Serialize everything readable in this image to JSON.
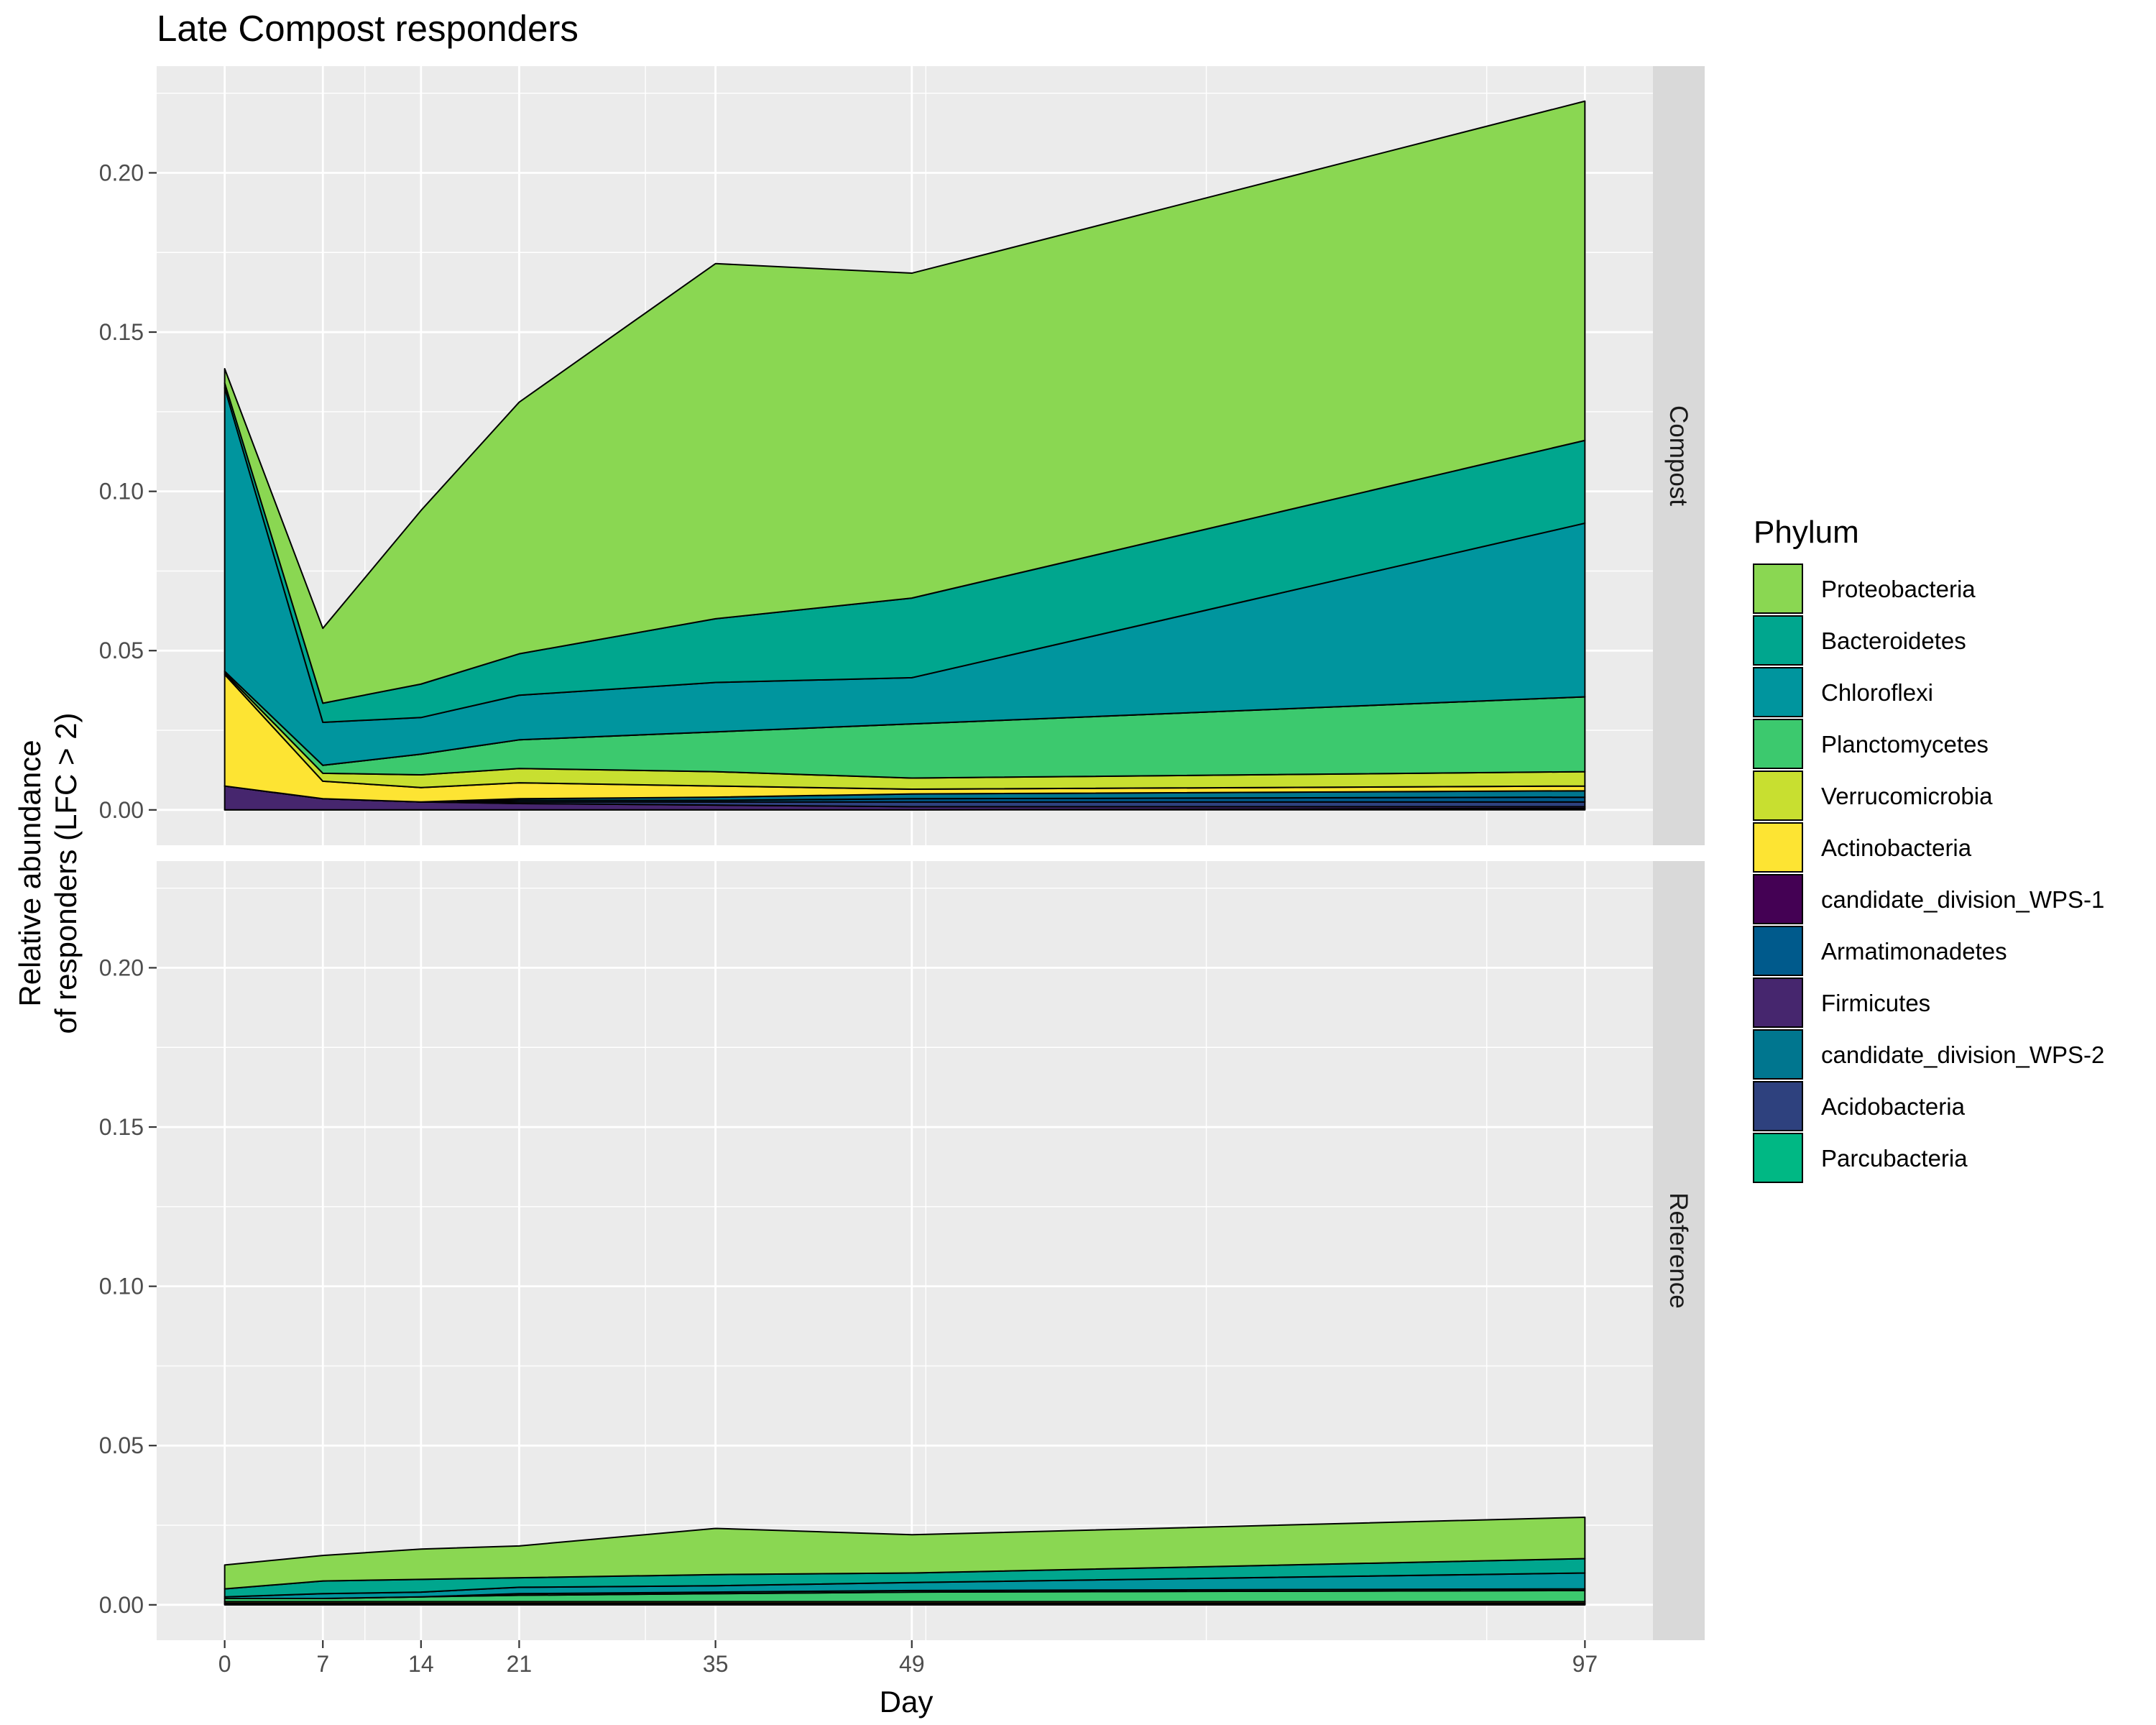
{
  "chart_data": {
    "type": "area",
    "title": "Late Compost responders",
    "xlabel": "Day",
    "ylabel_lines": [
      "Relative abundance",
      "of responders (LFC > 2)"
    ],
    "x": [
      0,
      7,
      14,
      21,
      35,
      49,
      97
    ],
    "x_ticks": [
      "0",
      "7",
      "14",
      "21",
      "35",
      "49",
      "97"
    ],
    "xlim": [
      -4.85,
      101.85
    ],
    "ylim": [
      -0.0111,
      0.2335
    ],
    "y_ticks": [
      0.0,
      0.05,
      0.1,
      0.15,
      0.2
    ],
    "y_tick_labels": [
      "0.00",
      "0.05",
      "0.10",
      "0.15",
      "0.20"
    ],
    "grid": true,
    "legend": {
      "title": "Phylum",
      "placement": "right",
      "entries": [
        {
          "name": "Proteobacteria",
          "color": "#8AD752"
        },
        {
          "name": "Bacteroidetes",
          "color": "#00A68E"
        },
        {
          "name": "Chloroflexi",
          "color": "#00959E"
        },
        {
          "name": "Planctomycetes",
          "color": "#3CC96E"
        },
        {
          "name": "Verrucomicrobia",
          "color": "#C8DF30"
        },
        {
          "name": "Actinobacteria",
          "color": "#FDE433"
        },
        {
          "name": "candidate_division_WPS-1",
          "color": "#440154"
        },
        {
          "name": "Armatimonadetes",
          "color": "#005A8C"
        },
        {
          "name": "Firmicutes",
          "color": "#46266E"
        },
        {
          "name": "candidate_division_WPS-2",
          "color": "#00768F"
        },
        {
          "name": "Acidobacteria",
          "color": "#2E417E"
        },
        {
          "name": "Parcubacteria",
          "color": "#00B884"
        }
      ]
    },
    "panels": [
      {
        "strip_label": "Compost",
        "stack_order_bottom_to_top": [
          "candidate_division_WPS-1",
          "Firmicutes",
          "Acidobacteria",
          "Armatimonadetes",
          "candidate_division_WPS-2",
          "Actinobacteria",
          "Verrucomicrobia",
          "Planctomycetes",
          "Parcubacteria",
          "Chloroflexi",
          "Bacteroidetes",
          "Proteobacteria"
        ],
        "series": [
          {
            "name": "candidate_division_WPS-1",
            "values": [
              0.0,
              0.0,
              0.0,
              0.0,
              0.0,
              0.0,
              0.0005
            ]
          },
          {
            "name": "Firmicutes",
            "values": [
              0.0075,
              0.0035,
              0.0025,
              0.002,
              0.0015,
              0.001,
              0.0005
            ]
          },
          {
            "name": "Acidobacteria",
            "values": [
              0.0,
              0.0,
              0.0,
              0.0005,
              0.001,
              0.0015,
              0.0015
            ]
          },
          {
            "name": "Armatimonadetes",
            "values": [
              0.0,
              0.0,
              0.0,
              0.0005,
              0.0005,
              0.001,
              0.0015
            ]
          },
          {
            "name": "candidate_division_WPS-2",
            "values": [
              0.0,
              0.0,
              0.0,
              0.0005,
              0.001,
              0.0015,
              0.002
            ]
          },
          {
            "name": "Actinobacteria",
            "values": [
              0.035,
              0.0055,
              0.0045,
              0.005,
              0.0035,
              0.0015,
              0.0015
            ]
          },
          {
            "name": "Verrucomicrobia",
            "values": [
              0.0005,
              0.0025,
              0.004,
              0.0045,
              0.0045,
              0.0035,
              0.0045
            ]
          },
          {
            "name": "Planctomycetes",
            "values": [
              0.0005,
              0.0025,
              0.0065,
              0.009,
              0.0125,
              0.017,
              0.0235
            ]
          },
          {
            "name": "Parcubacteria",
            "values": [
              0.0,
              0.0,
              0.0,
              0.0,
              0.0,
              0.0,
              0.0
            ]
          },
          {
            "name": "Chloroflexi",
            "values": [
              0.089,
              0.0135,
              0.0115,
              0.014,
              0.0155,
              0.0145,
              0.0545
            ]
          },
          {
            "name": "Bacteroidetes",
            "values": [
              0.0015,
              0.006,
              0.0105,
              0.013,
              0.02,
              0.025,
              0.026
            ]
          },
          {
            "name": "Proteobacteria",
            "values": [
              0.0045,
              0.0235,
              0.0545,
              0.079,
              0.1115,
              0.102,
              0.1065
            ]
          }
        ]
      },
      {
        "strip_label": "Reference",
        "stack_order_bottom_to_top": [
          "candidate_division_WPS-1",
          "Firmicutes",
          "Acidobacteria",
          "Armatimonadetes",
          "candidate_division_WPS-2",
          "Actinobacteria",
          "Verrucomicrobia",
          "Planctomycetes",
          "Parcubacteria",
          "Chloroflexi",
          "Bacteroidetes",
          "Proteobacteria"
        ],
        "series": [
          {
            "name": "candidate_division_WPS-1",
            "values": [
              0.0,
              0.0,
              0.0,
              0.0,
              0.0,
              0.0,
              0.0
            ]
          },
          {
            "name": "Firmicutes",
            "values": [
              0.0005,
              0.0005,
              0.0005,
              0.0005,
              0.0005,
              0.0005,
              0.0005
            ]
          },
          {
            "name": "Acidobacteria",
            "values": [
              0.0,
              0.0,
              0.0,
              0.0,
              0.0,
              0.0,
              0.0
            ]
          },
          {
            "name": "Armatimonadetes",
            "values": [
              0.0,
              0.0,
              0.0,
              0.0,
              0.0,
              0.0,
              0.0
            ]
          },
          {
            "name": "candidate_division_WPS-2",
            "values": [
              0.0,
              0.0,
              0.0,
              0.0,
              0.0,
              0.0,
              0.0
            ]
          },
          {
            "name": "Actinobacteria",
            "values": [
              0.0005,
              0.0005,
              0.0005,
              0.0005,
              0.0005,
              0.0005,
              0.0005
            ]
          },
          {
            "name": "Verrucomicrobia",
            "values": [
              0.0,
              0.0,
              0.0,
              0.0,
              0.0,
              0.0,
              0.0
            ]
          },
          {
            "name": "Planctomycetes",
            "values": [
              0.001,
              0.001,
              0.0015,
              0.002,
              0.0025,
              0.003,
              0.0035
            ]
          },
          {
            "name": "Parcubacteria",
            "values": [
              0.0,
              0.0,
              0.0,
              0.0005,
              0.0005,
              0.0005,
              0.0005
            ]
          },
          {
            "name": "Chloroflexi",
            "values": [
              0.0005,
              0.0015,
              0.0015,
              0.002,
              0.002,
              0.0025,
              0.005
            ]
          },
          {
            "name": "Bacteroidetes",
            "values": [
              0.0025,
              0.004,
              0.004,
              0.003,
              0.0035,
              0.003,
              0.0045
            ]
          },
          {
            "name": "Proteobacteria",
            "values": [
              0.0075,
              0.008,
              0.0095,
              0.01,
              0.0145,
              0.012,
              0.013
            ]
          }
        ]
      }
    ]
  }
}
